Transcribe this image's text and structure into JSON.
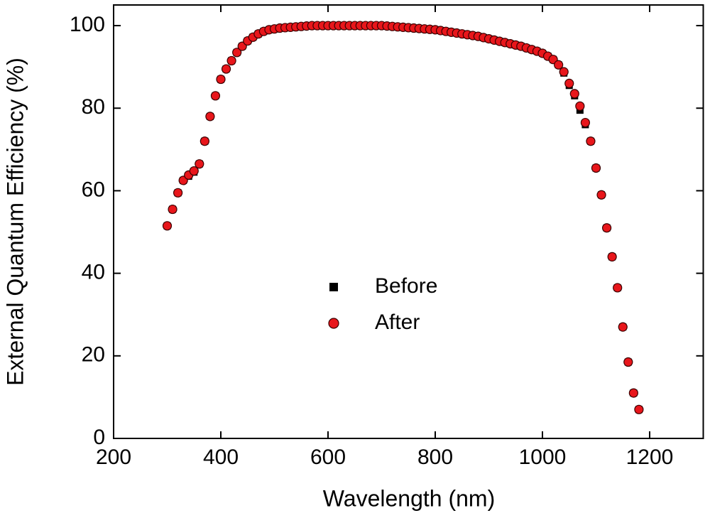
{
  "chart_data": {
    "type": "scatter",
    "xlabel": "Wavelength (nm)",
    "ylabel": "External Quantum Efficiency (%)",
    "x": [
      300,
      310,
      320,
      330,
      340,
      350,
      360,
      370,
      380,
      390,
      400,
      410,
      420,
      430,
      440,
      450,
      460,
      470,
      480,
      490,
      500,
      510,
      520,
      530,
      540,
      550,
      560,
      570,
      580,
      590,
      600,
      610,
      620,
      630,
      640,
      650,
      660,
      670,
      680,
      690,
      700,
      710,
      720,
      730,
      740,
      750,
      760,
      770,
      780,
      790,
      800,
      810,
      820,
      830,
      840,
      850,
      860,
      870,
      880,
      890,
      900,
      910,
      920,
      930,
      940,
      950,
      960,
      970,
      980,
      990,
      1000,
      1010,
      1020,
      1030,
      1040,
      1050,
      1060,
      1070,
      1080,
      1090,
      1100,
      1110,
      1120,
      1130,
      1140,
      1150,
      1160,
      1170,
      1180
    ],
    "series": [
      {
        "name": "Before",
        "color": "#000000",
        "marker": "square",
        "values": [
          51.5,
          55.5,
          59.5,
          62.5,
          63.5,
          64.5,
          66.5,
          72,
          78,
          83,
          87,
          89.5,
          91.5,
          93.5,
          95,
          96.3,
          97.2,
          98,
          98.6,
          99,
          99.2,
          99.4,
          99.5,
          99.6,
          99.7,
          99.8,
          99.9,
          100,
          100,
          100,
          100,
          100,
          100,
          100,
          100,
          100,
          100,
          100,
          100,
          100,
          100,
          99.9,
          99.8,
          99.7,
          99.6,
          99.5,
          99.4,
          99.3,
          99.2,
          99.1,
          99,
          98.8,
          98.6,
          98.4,
          98.2,
          98,
          97.8,
          97.6,
          97.4,
          97.1,
          96.8,
          96.5,
          96.2,
          95.9,
          95.6,
          95.3,
          95,
          94.6,
          94.2,
          93.8,
          93.3,
          92.6,
          91.8,
          90.5,
          88.5,
          85.5,
          83,
          79.5,
          76,
          72,
          65.5,
          59,
          51,
          44,
          36.5,
          27,
          18.5,
          11,
          7
        ]
      },
      {
        "name": "After",
        "color": "#e8161b",
        "marker": "circle",
        "values": [
          51.5,
          55.5,
          59.5,
          62.5,
          63.8,
          64.8,
          66.5,
          72,
          78,
          83,
          87,
          89.5,
          91.5,
          93.5,
          95,
          96.3,
          97.2,
          98,
          98.6,
          99,
          99.2,
          99.4,
          99.5,
          99.6,
          99.7,
          99.8,
          99.9,
          100,
          100,
          100,
          100,
          100,
          100,
          100,
          100,
          100,
          100,
          100,
          100,
          100,
          100,
          99.9,
          99.8,
          99.7,
          99.6,
          99.5,
          99.4,
          99.3,
          99.2,
          99.1,
          99,
          98.8,
          98.6,
          98.4,
          98.2,
          98,
          97.8,
          97.6,
          97.4,
          97.1,
          96.8,
          96.5,
          96.2,
          95.9,
          95.6,
          95.3,
          95,
          94.6,
          94.2,
          93.8,
          93.3,
          92.6,
          91.8,
          90.5,
          88.8,
          86,
          83.5,
          80.5,
          76.5,
          72,
          65.5,
          59,
          51,
          44,
          36.5,
          27,
          18.5,
          11,
          7
        ]
      }
    ],
    "xlim": [
      200,
      1300
    ],
    "xticks": [
      200,
      400,
      600,
      800,
      1000,
      1200
    ],
    "ylim": [
      0,
      105
    ],
    "yticks": [
      0,
      20,
      40,
      60,
      80,
      100
    ],
    "legend_position": "center",
    "grid": false
  }
}
